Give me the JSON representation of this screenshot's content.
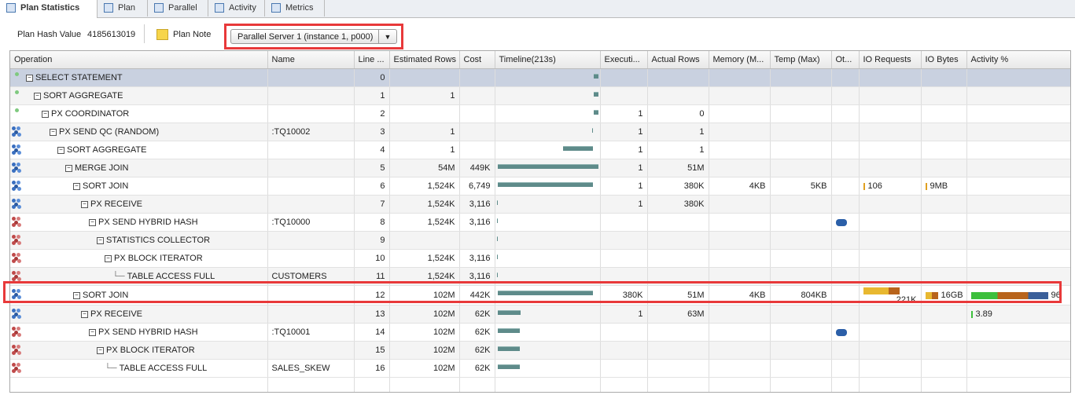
{
  "tabs": [
    "Plan Statistics",
    "Plan",
    "Parallel",
    "Activity",
    "Metrics"
  ],
  "toolbar": {
    "hash_label": "Plan Hash Value",
    "hash_value": "4185613019",
    "plan_note": "Plan Note",
    "server_select": "Parallel Server 1 (instance 1, p000)"
  },
  "table": {
    "columns": {
      "operation": "Operation",
      "name": "Name",
      "line": "Line ...",
      "est_rows": "Estimated Rows",
      "cost": "Cost",
      "timeline": "Timeline(213s)",
      "executions": "Executi...",
      "actual_rows": "Actual Rows",
      "memory": "Memory (M...",
      "temp": "Temp (Max)",
      "other": "Ot...",
      "io_requests": "IO Requests",
      "io_bytes": "IO Bytes",
      "activity": "Activity %"
    },
    "rows": [
      {
        "operation": "SELECT STATEMENT",
        "line": 0
      },
      {
        "operation": "SORT AGGREGATE",
        "line": 1,
        "est_rows": "1"
      },
      {
        "operation": "PX COORDINATOR",
        "line": 2,
        "executions": "1",
        "actual_rows": "0"
      },
      {
        "operation": "PX SEND QC (RANDOM)",
        "name": ":TQ10002",
        "line": 3,
        "est_rows": "1",
        "executions": "1",
        "actual_rows": "1"
      },
      {
        "operation": "SORT AGGREGATE",
        "line": 4,
        "est_rows": "1",
        "executions": "1",
        "actual_rows": "1"
      },
      {
        "operation": "MERGE JOIN",
        "line": 5,
        "est_rows": "54M",
        "cost": "449K",
        "executions": "1",
        "actual_rows": "51M"
      },
      {
        "operation": "SORT JOIN",
        "line": 6,
        "est_rows": "1,524K",
        "cost": "6,749",
        "executions": "1",
        "actual_rows": "380K",
        "memory": "4KB",
        "temp": "5KB",
        "io_requests": "106",
        "io_bytes": "9MB"
      },
      {
        "operation": "PX RECEIVE",
        "line": 7,
        "est_rows": "1,524K",
        "cost": "3,116",
        "executions": "1",
        "actual_rows": "380K"
      },
      {
        "operation": "PX SEND HYBRID HASH",
        "name": ":TQ10000",
        "line": 8,
        "est_rows": "1,524K",
        "cost": "3,116"
      },
      {
        "operation": "STATISTICS COLLECTOR",
        "line": 9
      },
      {
        "operation": "PX BLOCK ITERATOR",
        "line": 10,
        "est_rows": "1,524K",
        "cost": "3,116"
      },
      {
        "operation": "TABLE ACCESS FULL",
        "name": "CUSTOMERS",
        "line": 11,
        "est_rows": "1,524K",
        "cost": "3,116"
      },
      {
        "operation": "SORT JOIN",
        "line": 12,
        "est_rows": "102M",
        "cost": "442K",
        "executions": "380K",
        "actual_rows": "51M",
        "memory": "4KB",
        "temp": "804KB",
        "io_requests": "221K",
        "io_bytes": "16GB",
        "activity": "96"
      },
      {
        "operation": "PX RECEIVE",
        "line": 13,
        "est_rows": "102M",
        "cost": "62K",
        "executions": "1",
        "actual_rows": "63M",
        "activity": "3.89"
      },
      {
        "operation": "PX SEND HYBRID HASH",
        "name": ":TQ10001",
        "line": 14,
        "est_rows": "102M",
        "cost": "62K"
      },
      {
        "operation": "PX BLOCK ITERATOR",
        "line": 15,
        "est_rows": "102M",
        "cost": "62K"
      },
      {
        "operation": "TABLE ACCESS FULL",
        "name": "SALES_SKEW",
        "line": 16,
        "est_rows": "102M",
        "cost": "62K"
      }
    ]
  }
}
